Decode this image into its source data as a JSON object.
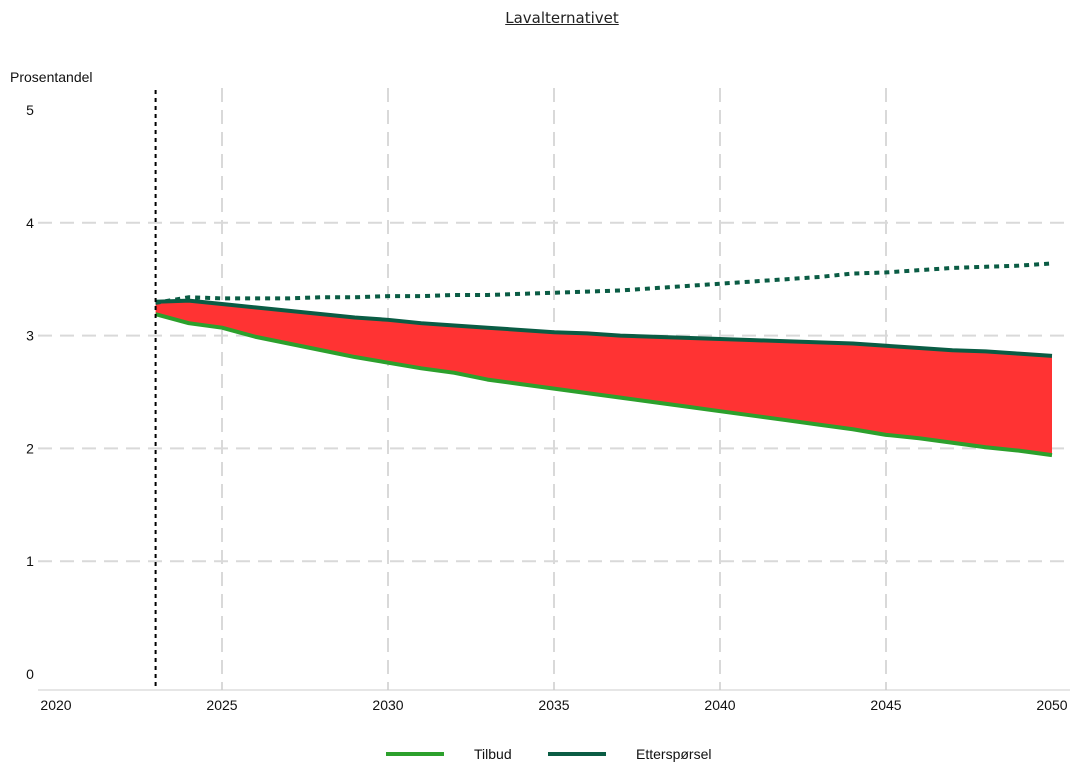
{
  "chart_data": {
    "type": "area",
    "title": "Lavalternativet",
    "ylabel": "Prosentandel",
    "xlabel": "",
    "xlim": [
      2020,
      2050
    ],
    "ylim": [
      0,
      5
    ],
    "x_ticks": [
      2020,
      2025,
      2030,
      2035,
      2040,
      2045,
      2050
    ],
    "y_ticks": [
      0,
      1,
      2,
      3,
      4,
      5
    ],
    "grid": true,
    "legend_position": "bottom",
    "vline_x": 2023,
    "colors": {
      "Tilbud": "#2ca02c",
      "Etterspørsel": "#0a5c44",
      "gap_fill": "#ff3333",
      "grid": "#d9d9d9"
    },
    "x": [
      2023,
      2024,
      2025,
      2026,
      2027,
      2028,
      2029,
      2030,
      2031,
      2032,
      2033,
      2034,
      2035,
      2036,
      2037,
      2038,
      2039,
      2040,
      2041,
      2042,
      2043,
      2044,
      2045,
      2046,
      2047,
      2048,
      2049,
      2050
    ],
    "series": [
      {
        "name": "Tilbud",
        "values": [
          3.19,
          3.11,
          3.07,
          2.99,
          2.93,
          2.87,
          2.81,
          2.76,
          2.71,
          2.67,
          2.61,
          2.57,
          2.53,
          2.49,
          2.45,
          2.41,
          2.37,
          2.33,
          2.29,
          2.25,
          2.21,
          2.17,
          2.12,
          2.09,
          2.05,
          2.01,
          1.98,
          1.94
        ]
      },
      {
        "name": "Etterspørsel",
        "values": [
          3.3,
          3.31,
          3.28,
          3.25,
          3.22,
          3.19,
          3.16,
          3.14,
          3.11,
          3.09,
          3.07,
          3.05,
          3.03,
          3.02,
          3.0,
          2.99,
          2.98,
          2.97,
          2.96,
          2.95,
          2.94,
          2.93,
          2.91,
          2.89,
          2.87,
          2.86,
          2.84,
          2.82
        ]
      }
    ],
    "dotted_line": {
      "values": [
        3.29,
        3.34,
        3.33,
        3.33,
        3.33,
        3.34,
        3.34,
        3.35,
        3.35,
        3.36,
        3.36,
        3.37,
        3.38,
        3.39,
        3.4,
        3.42,
        3.44,
        3.46,
        3.48,
        3.5,
        3.52,
        3.55,
        3.56,
        3.58,
        3.6,
        3.61,
        3.62,
        3.64
      ]
    }
  }
}
